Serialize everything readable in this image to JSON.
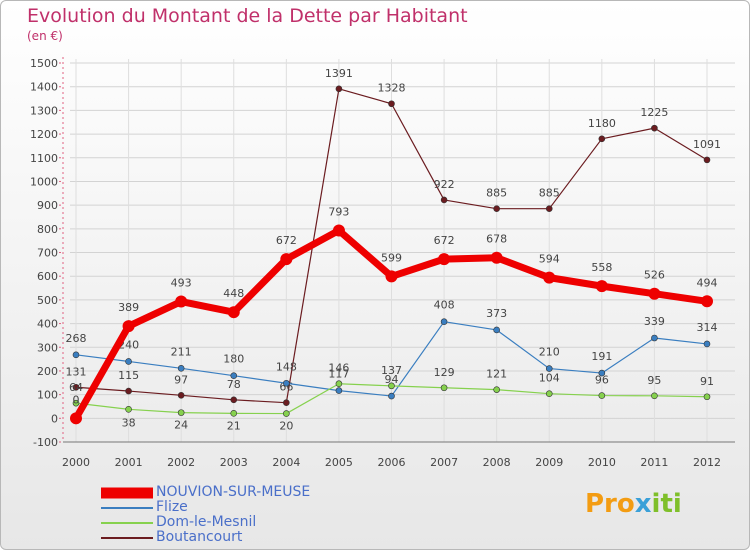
{
  "title": "Evolution du Montant de la Dette par Habitant",
  "unit": "(en €)",
  "brand": {
    "parts": [
      "Pro",
      "x",
      "iti"
    ]
  },
  "chart_data": {
    "type": "line",
    "title": "Evolution du Montant de la Dette par Habitant",
    "ylabel": "(en €)",
    "categories": [
      "2000",
      "2001",
      "2002",
      "2003",
      "2004",
      "2005",
      "2006",
      "2007",
      "2008",
      "2009",
      "2010",
      "2011",
      "2012"
    ],
    "ylim": [
      -100,
      1500
    ],
    "yticks": [
      -100,
      0,
      100,
      200,
      300,
      400,
      500,
      600,
      700,
      800,
      900,
      1000,
      1100,
      1200,
      1300,
      1400,
      1500
    ],
    "grid": true,
    "legend_position": "bottom-left",
    "series": [
      {
        "name": "NOUVION-SUR-MEUSE",
        "color": "#ee0000",
        "values": [
          0,
          389,
          493,
          448,
          672,
          793,
          599,
          672,
          678,
          594,
          558,
          526,
          494
        ]
      },
      {
        "name": "Flize",
        "color": "#3a7ec0",
        "values": [
          268,
          240,
          211,
          180,
          148,
          117,
          94,
          408,
          373,
          210,
          191,
          339,
          314
        ]
      },
      {
        "name": "Dom-le-Mesnil",
        "color": "#86d14e",
        "values": [
          64,
          38,
          24,
          21,
          20,
          146,
          137,
          129,
          121,
          104,
          96,
          95,
          91
        ]
      },
      {
        "name": "Boutancourt",
        "color": "#6b1c20",
        "values": [
          131,
          115,
          97,
          78,
          66,
          1391,
          1328,
          922,
          885,
          885,
          1180,
          1225,
          1091
        ]
      }
    ]
  }
}
